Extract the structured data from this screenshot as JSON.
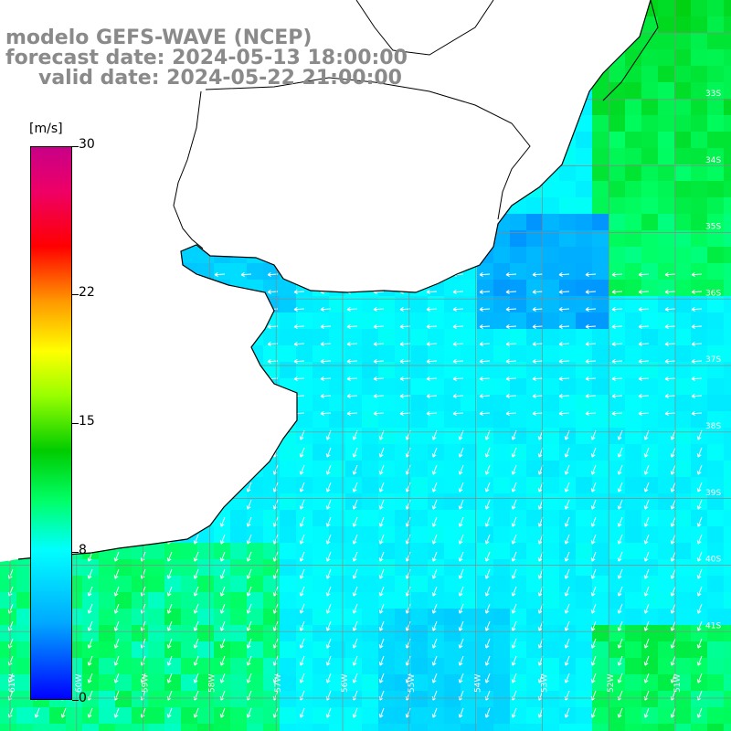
{
  "title": {
    "model": "modelo GEFS-WAVE (NCEP)",
    "forecast": "forecast date: 2024-05-13 18:00:00",
    "valid": "valid date: 2024-05-22 21:00:00"
  },
  "colorbar": {
    "unit": "[m/s]",
    "ticks": [
      "30",
      "22",
      "15",
      "8",
      "0"
    ],
    "tick_values": [
      30,
      22,
      15,
      8,
      0
    ],
    "range": [
      0,
      30
    ]
  },
  "map": {
    "lat_labels": [
      "33S",
      "34S",
      "35S",
      "36S",
      "37S",
      "38S",
      "39S",
      "40S",
      "41S"
    ],
    "lon_labels": [
      "61W",
      "60W",
      "59W",
      "58W",
      "57W",
      "56W",
      "55W",
      "54W",
      "53W",
      "52W",
      "51W"
    ],
    "field": "wind speed with direction arrows",
    "colors": {
      "land": "#ffffff",
      "coast": "#000000",
      "grid": "#888888",
      "arrow": "#ffffff"
    }
  }
}
